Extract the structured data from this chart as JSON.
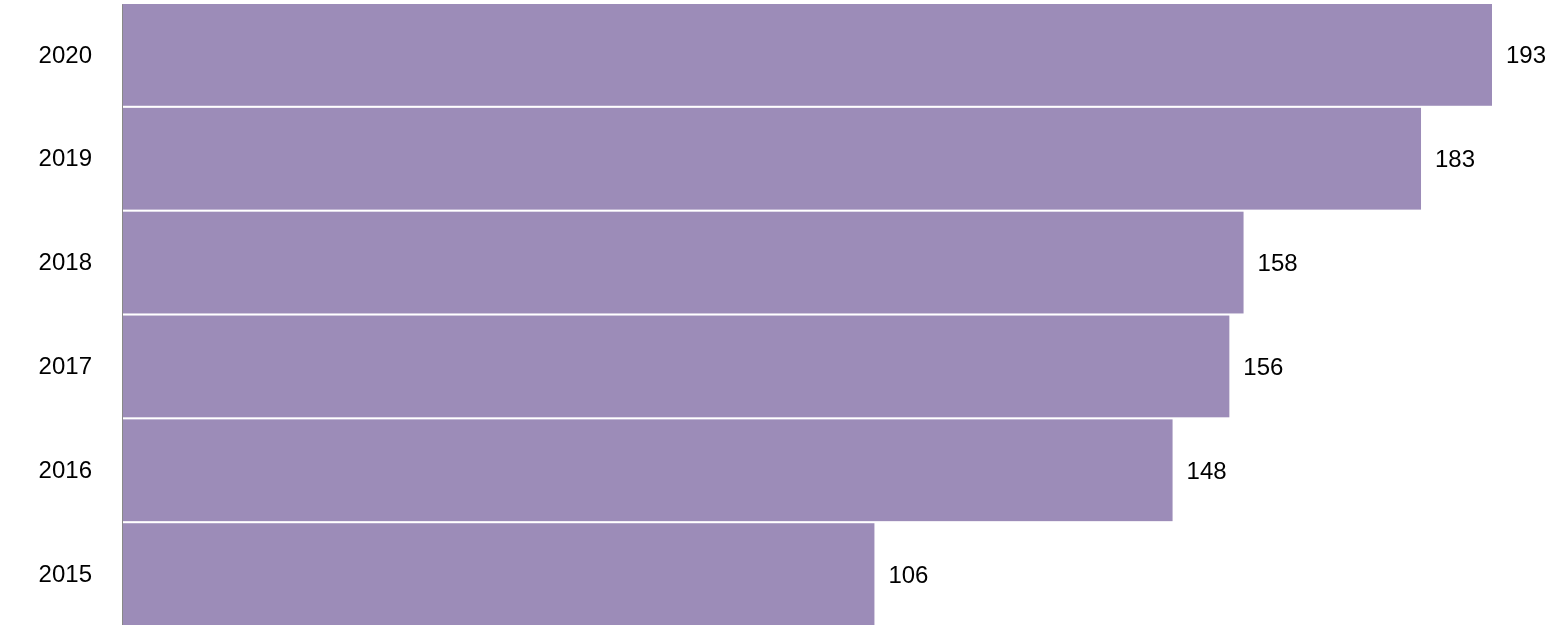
{
  "chart_data": {
    "type": "bar",
    "orientation": "horizontal",
    "categories": [
      "2020",
      "2019",
      "2018",
      "2017",
      "2016",
      "2015"
    ],
    "values": [
      193,
      183,
      158,
      156,
      148,
      106
    ],
    "color": "#9c8cb8",
    "data_labels": true
  }
}
